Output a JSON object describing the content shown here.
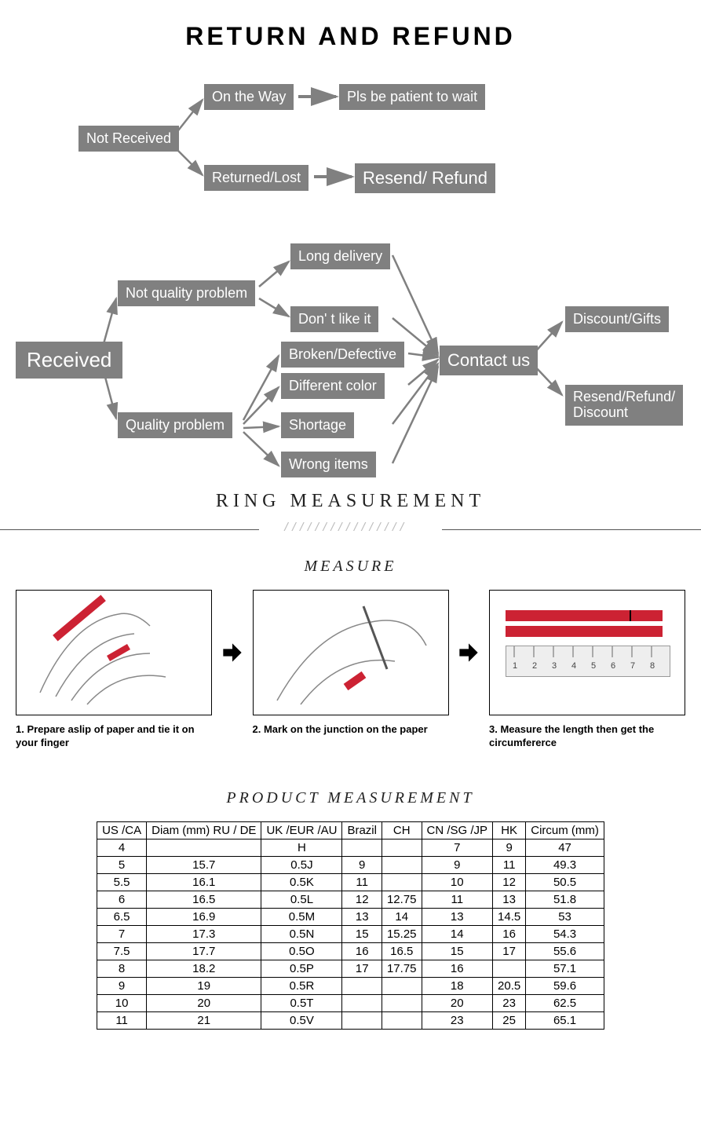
{
  "title": "RETURN AND REFUND",
  "flow": {
    "not_received": "Not Received",
    "on_the_way": "On the Way",
    "patient": "Pls be patient to wait",
    "returned_lost": "Returned/Lost",
    "resend_refund": "Resend/ Refund",
    "received": "Received",
    "not_quality": "Not quality problem",
    "quality": "Quality problem",
    "long_delivery": "Long delivery",
    "dont_like": "Don' t like it",
    "broken": "Broken/Defective",
    "diff_color": "Different color",
    "shortage": "Shortage",
    "wrong": "Wrong items",
    "contact": "Contact us",
    "discount_gifts": "Discount/Gifts",
    "resend_refund_discount": "Resend/Refund/\nDiscount"
  },
  "ring_heading": "RING MEASUREMENT",
  "measure_heading": "MEASURE",
  "measure_steps": {
    "s1": "1. Prepare aslip of paper and tie it on your finger",
    "s2": "2. Mark on the junction on the paper",
    "s3": "3. Measure the length then get the circumfererce"
  },
  "product_heading": "PRODUCT MEASUREMENT",
  "table": {
    "columns": [
      "US /CA",
      "Diam (mm) RU / DE",
      "UK /EUR /AU",
      "Brazil",
      "CH",
      "CN /SG /JP",
      "HK",
      "Circum (mm)"
    ],
    "rows": [
      [
        "4",
        "",
        "H",
        "",
        "",
        "7",
        "9",
        "47"
      ],
      [
        "5",
        "15.7",
        "0.5J",
        "9",
        "",
        "9",
        "11",
        "49.3"
      ],
      [
        "5.5",
        "16.1",
        "0.5K",
        "11",
        "",
        "10",
        "12",
        "50.5"
      ],
      [
        "6",
        "16.5",
        "0.5L",
        "12",
        "12.75",
        "11",
        "13",
        "51.8"
      ],
      [
        "6.5",
        "16.9",
        "0.5M",
        "13",
        "14",
        "13",
        "14.5",
        "53"
      ],
      [
        "7",
        "17.3",
        "0.5N",
        "15",
        "15.25",
        "14",
        "16",
        "54.3"
      ],
      [
        "7.5",
        "17.7",
        "0.5O",
        "16",
        "16.5",
        "15",
        "17",
        "55.6"
      ],
      [
        "8",
        "18.2",
        "0.5P",
        "17",
        "17.75",
        "16",
        "",
        "57.1"
      ],
      [
        "9",
        "19",
        "0.5R",
        "",
        "",
        "18",
        "20.5",
        "59.6"
      ],
      [
        "10",
        "20",
        "0.5T",
        "",
        "",
        "20",
        "23",
        "62.5"
      ],
      [
        "11",
        "21",
        "0.5V",
        "",
        "",
        "23",
        "25",
        "65.1"
      ]
    ]
  },
  "style": {
    "box_bg": "#808080",
    "arrow_color": "#808080",
    "divider_hatch": "////////////////"
  }
}
